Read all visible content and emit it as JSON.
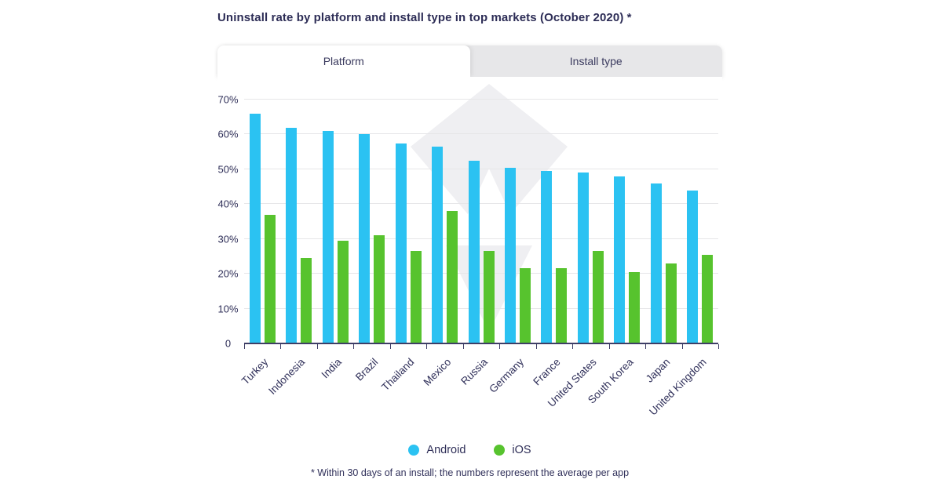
{
  "title": "Uninstall rate by platform and install type in top markets (October 2020) *",
  "tabs": [
    {
      "label": "Platform",
      "active": true
    },
    {
      "label": "Install type",
      "active": false
    }
  ],
  "legend": [
    {
      "label": "Android",
      "color": "#2bc2f2"
    },
    {
      "label": "iOS",
      "color": "#57c32e"
    }
  ],
  "footnote": "* Within 30 days of an install; the numbers represent the average per app",
  "colors": {
    "android": "#2bc2f2",
    "ios": "#57c32e",
    "text": "#2d2d56",
    "grid": "#e6e6e8",
    "axis": "#3e3e66",
    "tab_bar_bg": "#e7e7e9",
    "active_tab_bg": "#ffffff",
    "watermark": "#efeff2"
  },
  "chart_data": {
    "type": "bar",
    "title": "Uninstall rate by platform and install type in top markets (October 2020) *",
    "categories": [
      "Turkey",
      "Indonesia",
      "India",
      "Brazil",
      "Thailand",
      "Mexico",
      "Russia",
      "Germany",
      "France",
      "United States",
      "South Korea",
      "Japan",
      "United Kingdom"
    ],
    "series": [
      {
        "name": "Android",
        "color": "#2bc2f2",
        "values": [
          66,
          62,
          61,
          60,
          57.5,
          56.5,
          52.5,
          50.5,
          49.5,
          49,
          48,
          46,
          44
        ]
      },
      {
        "name": "iOS",
        "color": "#57c32e",
        "values": [
          37,
          24.5,
          29.5,
          31,
          26.5,
          38,
          26.5,
          21.5,
          21.5,
          26.5,
          20.5,
          23,
          25.5
        ]
      }
    ],
    "xlabel": "",
    "ylabel": "",
    "ylim": [
      0,
      70
    ],
    "yticks": [
      0,
      10,
      20,
      30,
      40,
      50,
      60,
      70
    ],
    "ytick_labels": [
      "0",
      "10%",
      "20%",
      "30%",
      "40%",
      "50%",
      "60%",
      "70%"
    ],
    "grid": true,
    "legend_position": "bottom"
  }
}
